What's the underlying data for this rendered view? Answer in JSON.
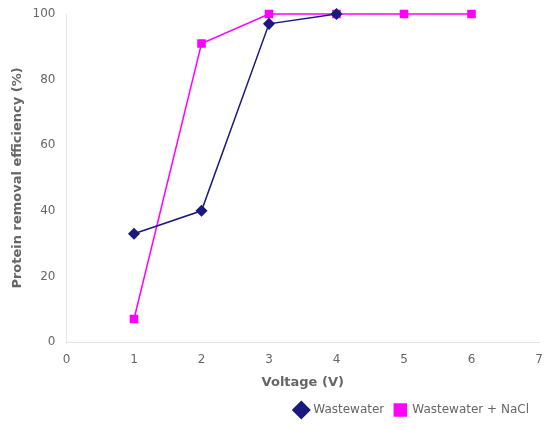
{
  "chart_data": {
    "type": "line",
    "xlabel": "Voltage (V)",
    "ylabel": "Protein removal efficiency (%)",
    "series": [
      {
        "name": "Wastewater",
        "color": "#1a1a7e",
        "marker": "diamond",
        "x": [
          1,
          2,
          3,
          4
        ],
        "values": [
          33,
          40,
          97,
          100
        ]
      },
      {
        "name": "Wastewater + NaCl",
        "color": "#ff00ff",
        "marker": "square",
        "x": [
          1,
          2,
          3,
          4,
          5,
          6
        ],
        "values": [
          7,
          91,
          100,
          100,
          100,
          100
        ]
      }
    ],
    "xlim": [
      0,
      7
    ],
    "xticks": [
      0,
      1,
      2,
      3,
      4,
      5,
      6,
      7
    ],
    "ylim": [
      0,
      100
    ],
    "yticks": [
      0,
      20,
      40,
      60,
      80,
      100
    ],
    "grid": false,
    "legend": "lower right"
  }
}
